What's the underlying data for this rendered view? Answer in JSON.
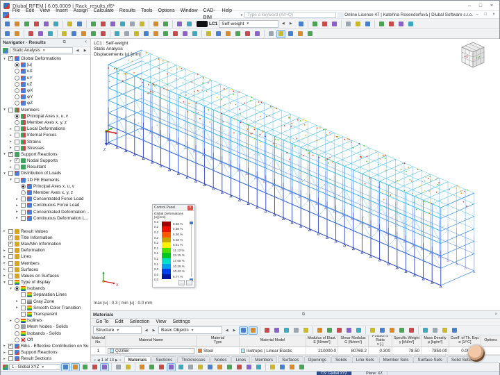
{
  "window": {
    "title": "Dlubal RFEM | 6.05.0009 | Rack_results.rf6*",
    "search_placeholder": "Type a keyword (Alt+Q)",
    "license": "Online License 47 | Kateřina Rosendorfová | Dlubal Software s.r.o."
  },
  "menu": {
    "items": [
      "File",
      "Edit",
      "View",
      "Insert",
      "Assign",
      "Calculate",
      "Results",
      "Tools",
      "Options",
      "Window",
      "CAD-BIM",
      "Help"
    ]
  },
  "toolbars": {
    "row1_left": [
      "new",
      "open",
      "teamwork-server",
      "save",
      "cloud-projects",
      "print",
      "|",
      "undo",
      "redo",
      "|",
      "window-isometric",
      "window-xz",
      "window-xy",
      "window-yz",
      "previous-view",
      "zoom-by-window",
      "|",
      "rendering",
      "display-properties",
      "|",
      "model-check",
      "loads-regenerate"
    ],
    "row1_right": [
      "calculate-all",
      "|",
      "show-results",
      "show-result-values",
      "control-panel-toggle",
      "|",
      "result-filter",
      "visibility-modes",
      "clipping-planes",
      "|",
      "tables-toggle",
      "printout-report",
      "add-comment",
      "favorites"
    ],
    "row2": [
      "select-pointer",
      "select-window",
      "|",
      "snap-settings",
      "work-plane",
      "grid-settings",
      "|",
      "move-copy",
      "rotate",
      "mirror",
      "scale",
      "trim",
      "|",
      "new-node",
      "new-line",
      "new-arc",
      "new-circle",
      "new-polyline",
      "new-surface",
      "new-opening",
      "new-member",
      "new-section",
      "|",
      "new-support",
      "new-hinge",
      "new-nodal-load",
      "new-member-load",
      "new-surface-load",
      "free-load",
      "|",
      "visibility-state",
      "user-defined-view*",
      "clipping-box",
      "section-view",
      "renderer-settings"
    ],
    "materials_bar": [
      "edit-pointer*",
      "multi-select*",
      "|",
      "table-edit",
      "table-view",
      "table-print",
      "export-excel",
      "import-table",
      "|",
      "delete-contents",
      "insert-row",
      "delete-row",
      "jump-first",
      "jump-last",
      "|",
      "window-layout",
      "sort-rows",
      "fx-formula",
      "fx-edit",
      "fx-parameters",
      "|",
      "color-columns",
      "table-settings",
      "used-filter",
      "search-table"
    ],
    "status_bar": [
      "snap-toggle*",
      "grid-snap*",
      "ortho-snap",
      "guideline-snap",
      "object-snap*",
      "|",
      "work-plane-lock",
      "line-grid",
      "|",
      "background-layers",
      "move-plane",
      "plane-xy",
      "plane-xz*",
      "plane-yz",
      "offset-plane",
      "axes-toggle",
      "comments-toggle",
      "dimensions-toggle",
      "select-lock",
      "center-snap",
      "perpendicular-snap",
      "tangent-snap",
      "|",
      "table-dock",
      "panel-dock",
      "report-dock",
      "minimize-panel"
    ],
    "load_case": {
      "chip": "LC1",
      "value": "Self-weight"
    }
  },
  "navigator": {
    "title": "Navigator - Results",
    "analysis_combo": "Static Analysis",
    "tree": [
      {
        "d": 0,
        "e": "v",
        "c": "c1",
        "i": "def",
        "t": "Global Deformations"
      },
      {
        "d": 1,
        "e": "",
        "c": "r1",
        "i": "def",
        "t": "|u|"
      },
      {
        "d": 1,
        "e": "",
        "c": "r0",
        "i": "def",
        "t": "uX"
      },
      {
        "d": 1,
        "e": "",
        "c": "r0",
        "i": "def",
        "t": "uY"
      },
      {
        "d": 1,
        "e": "",
        "c": "r0",
        "i": "def",
        "t": "uZ"
      },
      {
        "d": 1,
        "e": "",
        "c": "r0",
        "i": "def",
        "t": "φX"
      },
      {
        "d": 1,
        "e": "",
        "c": "r0",
        "i": "def",
        "t": "φY"
      },
      {
        "d": 1,
        "e": "",
        "c": "r0",
        "i": "def",
        "t": "φZ"
      },
      {
        "d": 0,
        "e": "v",
        "c": "c0",
        "i": "mem",
        "t": "Members"
      },
      {
        "d": 1,
        "e": "",
        "c": "r1",
        "i": "mem",
        "t": "Principal Axes x, u, v"
      },
      {
        "d": 1,
        "e": "",
        "c": "r0",
        "i": "mem",
        "t": "Member Axes x, y, z"
      },
      {
        "d": 1,
        "e": ">",
        "c": "c0",
        "i": "mem",
        "t": "Local Deformations"
      },
      {
        "d": 1,
        "e": ">",
        "c": "c0",
        "i": "mem",
        "t": "Internal Forces"
      },
      {
        "d": 1,
        "e": ">",
        "c": "c0",
        "i": "mem",
        "t": "Strains"
      },
      {
        "d": 1,
        "e": ">",
        "c": "c0",
        "i": "mem",
        "t": "Stresses"
      },
      {
        "d": 0,
        "e": "v",
        "c": "c1",
        "i": "sup",
        "t": "Support Reactions"
      },
      {
        "d": 1,
        "e": ">",
        "c": "c1",
        "i": "sup",
        "t": "Nodal Supports"
      },
      {
        "d": 1,
        "e": ">",
        "c": "c0",
        "i": "sup",
        "t": "Resultant"
      },
      {
        "d": 0,
        "e": "v",
        "c": "c0",
        "i": "def",
        "t": "Distribution of Loads"
      },
      {
        "d": 1,
        "e": "v",
        "c": "c0",
        "i": "def",
        "t": "1D FE Elements"
      },
      {
        "d": 2,
        "e": "",
        "c": "r1",
        "i": "def",
        "t": "Principal Axes x, u, v"
      },
      {
        "d": 2,
        "e": "",
        "c": "r0",
        "i": "def",
        "t": "Member Axes x, y, z"
      },
      {
        "d": 2,
        "e": ">",
        "c": "c0",
        "i": "def",
        "t": "Concentrated Force Load"
      },
      {
        "d": 2,
        "e": ">",
        "c": "c0",
        "i": "def",
        "t": "Continuous Force Load"
      },
      {
        "d": 2,
        "e": ">",
        "c": "c0",
        "i": "def",
        "t": "Concentrated Deformation ..."
      },
      {
        "d": 2,
        "e": ">",
        "c": "c0",
        "i": "def",
        "t": "Continuous Deformation L..."
      },
      {
        "gap": true
      },
      {
        "d": 0,
        "e": ">",
        "c": "c0",
        "i": "val",
        "t": "Result Values"
      },
      {
        "d": 0,
        "e": "",
        "c": "c1",
        "i": "val",
        "t": "Title Information"
      },
      {
        "d": 0,
        "e": "",
        "c": "c1",
        "i": "val",
        "t": "Max/Min Information"
      },
      {
        "d": 0,
        "e": ">",
        "c": "c0",
        "i": "val",
        "t": "Deformation"
      },
      {
        "d": 0,
        "e": ">",
        "c": "c0",
        "i": "val",
        "t": "Lines"
      },
      {
        "d": 0,
        "e": ">",
        "c": "c0",
        "i": "val",
        "t": "Members"
      },
      {
        "d": 0,
        "e": ">",
        "c": "c0",
        "i": "val",
        "t": "Surfaces"
      },
      {
        "d": 0,
        "e": ">",
        "c": "c0",
        "i": "val",
        "t": "Values on Surfaces"
      },
      {
        "d": 0,
        "e": "v",
        "c": "c0",
        "i": "iso",
        "t": "Type of display"
      },
      {
        "d": 1,
        "e": "v",
        "c": "r1",
        "i": "iso",
        "t": "Isobands"
      },
      {
        "d": 2,
        "e": "",
        "c": "c0",
        "i": "iso",
        "t": "Separation Lines"
      },
      {
        "d": 2,
        "e": ">",
        "c": "c0",
        "i": "gray",
        "t": "Gray Zone"
      },
      {
        "d": 2,
        "e": ">",
        "c": "c0",
        "i": "iso",
        "t": "Smooth Color Transition"
      },
      {
        "d": 2,
        "e": "",
        "c": "c0",
        "i": "iso",
        "t": "Transparent"
      },
      {
        "d": 1,
        "e": ">",
        "c": "r0",
        "i": "isoln",
        "t": "Isolines"
      },
      {
        "d": 1,
        "e": "",
        "c": "r0",
        "i": "mesh",
        "t": "Mesh Nodes - Solids"
      },
      {
        "d": 1,
        "e": "",
        "c": "r0",
        "i": "iso",
        "t": "Isobands - Solids"
      },
      {
        "d": 1,
        "e": "",
        "c": "r0",
        "i": "off",
        "t": "Off"
      },
      {
        "d": 0,
        "e": ">",
        "c": "c1",
        "i": "rib",
        "t": "Ribs - Effective Contribution on Sur..."
      },
      {
        "d": 0,
        "e": ">",
        "c": "c0",
        "i": "rib",
        "t": "Support Reactions"
      },
      {
        "d": 0,
        "e": ">",
        "c": "c0",
        "i": "rib",
        "t": "Result Sections"
      }
    ]
  },
  "viewport": {
    "info_line1": "LC1 : Self-weight",
    "info_line2": "Static Analysis",
    "info_line3": "Displacements |u| [mm]",
    "maxmin": "max |u| : 0.3 | min |u| : 0.0 mm",
    "axis_z": "Z",
    "axis_x": "X",
    "cube_x": "+X",
    "cube_y": "+Y",
    "structure_colors": {
      "upright_top": "#3b8ee6",
      "upright_bottom": "#2340cc",
      "beam_cyan": "#28b2e6",
      "beam_blue": "#2a60da"
    }
  },
  "control_panel": {
    "title": "Control Panel",
    "subtitle": "Global Deformations\n|u| [mm]",
    "scale_values": [
      "0.3",
      "0.2",
      "0.2",
      "0.2",
      "0.2",
      "0.1",
      "0.1",
      "0.1",
      "0.1",
      "0.0",
      "0.0",
      "0.0"
    ],
    "bands": [
      {
        "color": "#a00000",
        "pct": "0.68 %"
      },
      {
        "color": "#ee1100",
        "pct": "4.38 %"
      },
      {
        "color": "#ff5a00",
        "pct": "5.20 %"
      },
      {
        "color": "#c8a800",
        "pct": "5.28 %"
      },
      {
        "color": "#fff000",
        "pct": "5.61 %"
      },
      {
        "color": "#50e000",
        "pct": "11.13 %"
      },
      {
        "color": "#00c81e",
        "pct": "23.15 %"
      },
      {
        "color": "#00e0c8",
        "pct": "17.08 %"
      },
      {
        "color": "#00a0f0",
        "pct": "10.28 %"
      },
      {
        "color": "#0040e8",
        "pct": "10.42 %"
      },
      {
        "color": "#0018a0",
        "pct": "6.77 %"
      }
    ]
  },
  "materials": {
    "title": "Materials",
    "menu": [
      "Go To",
      "Edit",
      "Selection",
      "View",
      "Settings"
    ],
    "scope_combo": "Structure",
    "category_combo": "Basic Objects",
    "columns": [
      "Material\nNo.",
      "Material Name",
      "Material\nType",
      "Material Model",
      "Modulus of Elast.\nE [N/mm²]",
      "Shear Modulus\nG [N/mm²]",
      "Poisson's Ratio\nν [-]",
      "Specific Weight\nγ [kN/m³]",
      "Mass Density\nρ [kg/m³]",
      "Coeff. of Th. Exp.\nα [1/°C]",
      "Options"
    ],
    "row": {
      "no": "1",
      "name": "Q235B",
      "type": "Steel",
      "model": "Isotropic | Linear Elastic",
      "values": [
        "210000.0",
        "80769.2",
        "0.300",
        "78.50",
        "7850.00",
        "0.000012"
      ]
    },
    "name_color": "#aef2ff",
    "type_color": "#f07820",
    "model_color": "#aef2ff"
  },
  "tabs": {
    "pager": "1 of 13",
    "items": [
      "Materials",
      "Sections",
      "Thicknesses",
      "Nodes",
      "Lines",
      "Members",
      "Surfaces",
      "Openings",
      "Solids",
      "Line Sets",
      "Member Sets",
      "Surface Sets",
      "Solid Sets"
    ],
    "active": "Materials"
  },
  "statusbar": {
    "cs_combo": "1 - Global XYZ",
    "cs_label": "CS: Global XYZ",
    "plane_label": "Plane: XZ"
  }
}
